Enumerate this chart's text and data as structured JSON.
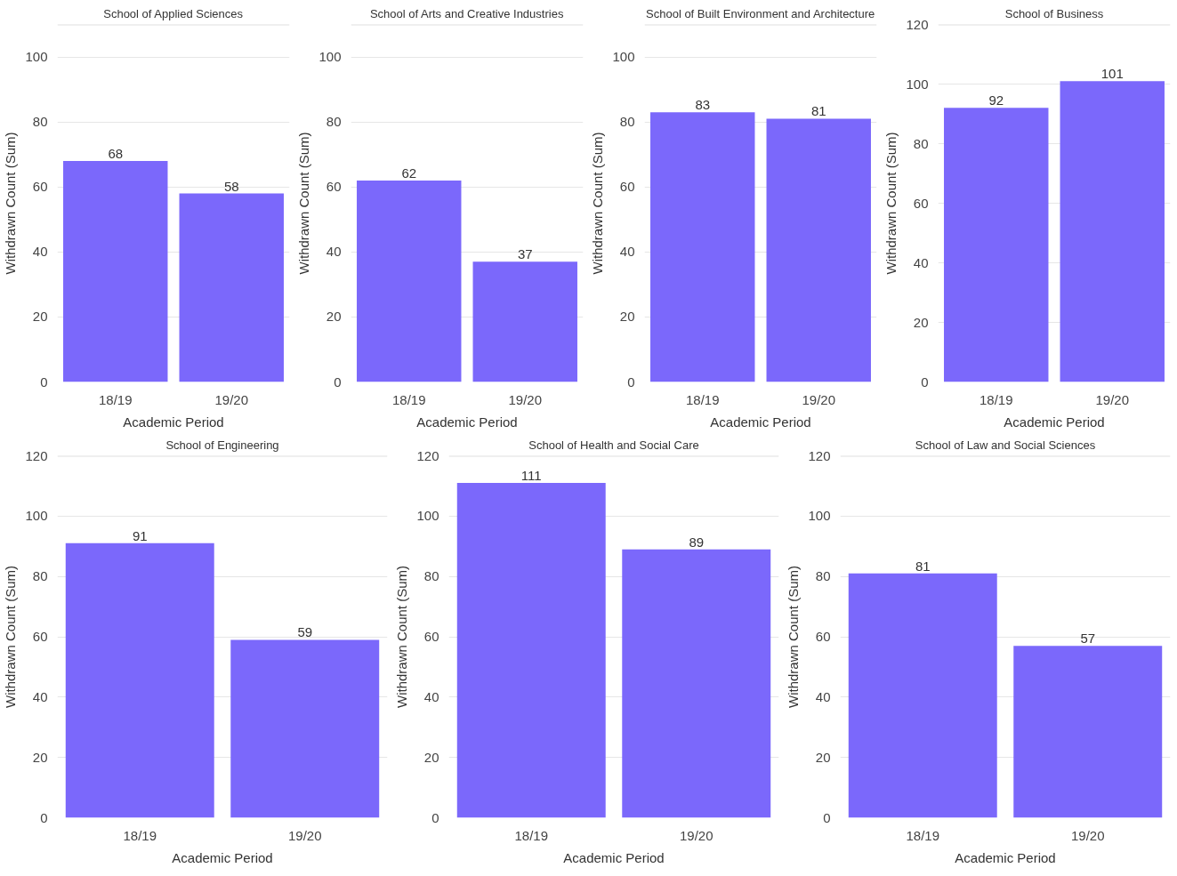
{
  "chart_data": [
    {
      "type": "bar",
      "title": "School of Applied Sciences",
      "xlabel": "Academic Period",
      "ylabel": "Withdrawn Count (Sum)",
      "categories": [
        "18/19",
        "19/20"
      ],
      "values": [
        68,
        58
      ],
      "color": "#7b68fb",
      "ylim": [
        0,
        110
      ],
      "yticks": [
        0,
        20,
        40,
        60,
        80,
        100
      ],
      "grid": "y",
      "data_labels": true
    },
    {
      "type": "bar",
      "title": "School of Arts and Creative Industries",
      "xlabel": "Academic Period",
      "ylabel": "Withdrawn Count (Sum)",
      "categories": [
        "18/19",
        "19/20"
      ],
      "values": [
        62,
        37
      ],
      "color": "#7b68fb",
      "ylim": [
        0,
        110
      ],
      "yticks": [
        0,
        20,
        40,
        60,
        80,
        100
      ],
      "grid": "y",
      "data_labels": true
    },
    {
      "type": "bar",
      "title": "School of Built Environment and Architecture",
      "xlabel": "Academic Period",
      "ylabel": "Withdrawn Count (Sum)",
      "categories": [
        "18/19",
        "19/20"
      ],
      "values": [
        83,
        81
      ],
      "color": "#7b68fb",
      "ylim": [
        0,
        110
      ],
      "yticks": [
        0,
        20,
        40,
        60,
        80,
        100
      ],
      "grid": "y",
      "data_labels": true
    },
    {
      "type": "bar",
      "title": "School of Business",
      "xlabel": "Academic Period",
      "ylabel": "Withdrawn Count (Sum)",
      "categories": [
        "18/19",
        "19/20"
      ],
      "values": [
        92,
        101
      ],
      "color": "#7b68fb",
      "ylim": [
        0,
        120
      ],
      "yticks": [
        0,
        20,
        40,
        60,
        80,
        100,
        120
      ],
      "grid": "y",
      "data_labels": true
    },
    {
      "type": "bar",
      "title": "School of Engineering",
      "xlabel": "Academic Period",
      "ylabel": "Withdrawn Count (Sum)",
      "categories": [
        "18/19",
        "19/20"
      ],
      "values": [
        91,
        59
      ],
      "color": "#7b68fb",
      "ylim": [
        0,
        120
      ],
      "yticks": [
        0,
        20,
        40,
        60,
        80,
        100,
        120
      ],
      "grid": "y",
      "data_labels": true
    },
    {
      "type": "bar",
      "title": "School of Health and Social Care",
      "xlabel": "Academic Period",
      "ylabel": "Withdrawn Count (Sum)",
      "categories": [
        "18/19",
        "19/20"
      ],
      "values": [
        111,
        89
      ],
      "color": "#7b68fb",
      "ylim": [
        0,
        120
      ],
      "yticks": [
        0,
        20,
        40,
        60,
        80,
        100,
        120
      ],
      "grid": "y",
      "data_labels": true
    },
    {
      "type": "bar",
      "title": "School of Law and Social Sciences",
      "xlabel": "Academic Period",
      "ylabel": "Withdrawn Count (Sum)",
      "categories": [
        "18/19",
        "19/20"
      ],
      "values": [
        81,
        57
      ],
      "color": "#7b68fb",
      "ylim": [
        0,
        120
      ],
      "yticks": [
        0,
        20,
        40,
        60,
        80,
        100,
        120
      ],
      "grid": "y",
      "data_labels": true
    }
  ]
}
